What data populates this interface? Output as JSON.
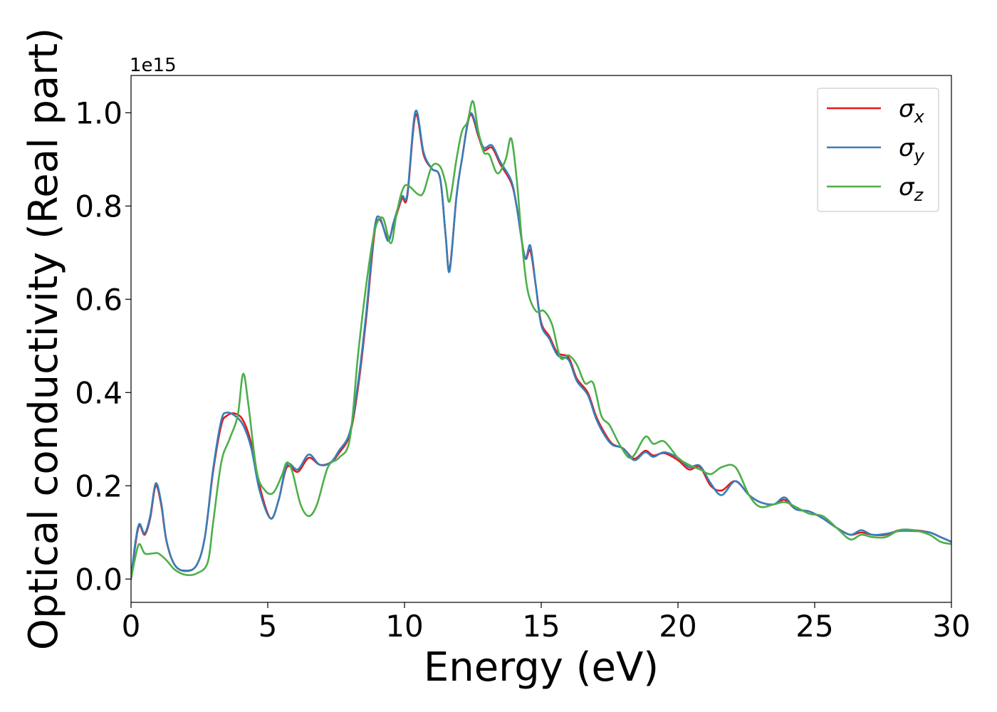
{
  "chart_data": {
    "type": "line",
    "xlabel": "Energy (eV)",
    "ylabel": "Optical conductivity (Real part)",
    "y_offset_text": "1e15",
    "xlim": [
      0,
      30
    ],
    "ylim": [
      -0.05,
      1.08
    ],
    "y_scale_factor": 1000000000000000.0,
    "x_ticks": [
      0,
      5,
      10,
      15,
      20,
      25,
      30
    ],
    "x_tick_labels": [
      "0",
      "5",
      "10",
      "15",
      "20",
      "25",
      "30"
    ],
    "y_ticks": [
      0.0,
      0.2,
      0.4,
      0.6,
      0.8,
      1.0
    ],
    "y_tick_labels": [
      "0.0",
      "0.2",
      "0.4",
      "0.6",
      "0.8",
      "1.0"
    ],
    "grid": false,
    "legend_position": "top-right",
    "series": [
      {
        "name": "σx",
        "symbol": "σ",
        "subscript": "x",
        "color": "#e41a1c",
        "points": [
          [
            0,
            0
          ],
          [
            0.15,
            0.07
          ],
          [
            0.3,
            0.115
          ],
          [
            0.5,
            0.095
          ],
          [
            0.7,
            0.13
          ],
          [
            0.9,
            0.2
          ],
          [
            1.1,
            0.16
          ],
          [
            1.3,
            0.08
          ],
          [
            1.6,
            0.03
          ],
          [
            2,
            0.017
          ],
          [
            2.4,
            0.03
          ],
          [
            2.7,
            0.09
          ],
          [
            3,
            0.23
          ],
          [
            3.3,
            0.33
          ],
          [
            3.5,
            0.35
          ],
          [
            3.8,
            0.355
          ],
          [
            4.1,
            0.34
          ],
          [
            4.4,
            0.29
          ],
          [
            4.7,
            0.2
          ],
          [
            5.1,
            0.13
          ],
          [
            5.4,
            0.17
          ],
          [
            5.7,
            0.24
          ],
          [
            6.1,
            0.23
          ],
          [
            6.5,
            0.26
          ],
          [
            6.9,
            0.245
          ],
          [
            7.3,
            0.25
          ],
          [
            7.6,
            0.27
          ],
          [
            8,
            0.31
          ],
          [
            8.3,
            0.41
          ],
          [
            8.6,
            0.56
          ],
          [
            8.9,
            0.74
          ],
          [
            9.1,
            0.77
          ],
          [
            9.4,
            0.73
          ],
          [
            9.6,
            0.76
          ],
          [
            9.9,
            0.815
          ],
          [
            10.1,
            0.82
          ],
          [
            10.4,
            0.995
          ],
          [
            10.7,
            0.91
          ],
          [
            11,
            0.88
          ],
          [
            11.3,
            0.86
          ],
          [
            11.5,
            0.74
          ],
          [
            11.65,
            0.665
          ],
          [
            11.9,
            0.82
          ],
          [
            12.1,
            0.9
          ],
          [
            12.4,
            0.995
          ],
          [
            12.7,
            0.95
          ],
          [
            12.9,
            0.92
          ],
          [
            13.2,
            0.925
          ],
          [
            13.5,
            0.89
          ],
          [
            13.9,
            0.85
          ],
          [
            14.1,
            0.8
          ],
          [
            14.4,
            0.69
          ],
          [
            14.6,
            0.705
          ],
          [
            14.8,
            0.63
          ],
          [
            15,
            0.55
          ],
          [
            15.3,
            0.52
          ],
          [
            15.6,
            0.485
          ],
          [
            16,
            0.475
          ],
          [
            16.3,
            0.43
          ],
          [
            16.7,
            0.4
          ],
          [
            17,
            0.35
          ],
          [
            17.3,
            0.315
          ],
          [
            17.6,
            0.29
          ],
          [
            18,
            0.28
          ],
          [
            18.4,
            0.258
          ],
          [
            18.8,
            0.275
          ],
          [
            19.1,
            0.265
          ],
          [
            19.5,
            0.27
          ],
          [
            20,
            0.255
          ],
          [
            20.4,
            0.235
          ],
          [
            20.8,
            0.24
          ],
          [
            21.2,
            0.2
          ],
          [
            21.6,
            0.19
          ],
          [
            22.1,
            0.21
          ],
          [
            22.6,
            0.18
          ],
          [
            23,
            0.165
          ],
          [
            23.5,
            0.16
          ],
          [
            23.9,
            0.17
          ],
          [
            24.3,
            0.15
          ],
          [
            24.8,
            0.145
          ],
          [
            25.3,
            0.13
          ],
          [
            25.8,
            0.11
          ],
          [
            26.3,
            0.095
          ],
          [
            26.7,
            0.1
          ],
          [
            27.1,
            0.095
          ],
          [
            27.6,
            0.095
          ],
          [
            28.1,
            0.105
          ],
          [
            28.6,
            0.105
          ],
          [
            29.2,
            0.1
          ],
          [
            29.6,
            0.09
          ],
          [
            30,
            0.08
          ]
        ]
      },
      {
        "name": "σy",
        "symbol": "σ",
        "subscript": "y",
        "color": "#377eb8",
        "points": [
          [
            0,
            0
          ],
          [
            0.15,
            0.075
          ],
          [
            0.3,
            0.118
          ],
          [
            0.5,
            0.098
          ],
          [
            0.7,
            0.135
          ],
          [
            0.9,
            0.205
          ],
          [
            1.1,
            0.165
          ],
          [
            1.3,
            0.082
          ],
          [
            1.6,
            0.03
          ],
          [
            2,
            0.018
          ],
          [
            2.4,
            0.03
          ],
          [
            2.7,
            0.09
          ],
          [
            3,
            0.235
          ],
          [
            3.3,
            0.34
          ],
          [
            3.5,
            0.357
          ],
          [
            3.8,
            0.35
          ],
          [
            4.1,
            0.33
          ],
          [
            4.4,
            0.28
          ],
          [
            4.7,
            0.19
          ],
          [
            5.1,
            0.13
          ],
          [
            5.4,
            0.17
          ],
          [
            5.7,
            0.245
          ],
          [
            6.1,
            0.235
          ],
          [
            6.5,
            0.267
          ],
          [
            6.9,
            0.245
          ],
          [
            7.3,
            0.25
          ],
          [
            7.6,
            0.275
          ],
          [
            8,
            0.315
          ],
          [
            8.3,
            0.42
          ],
          [
            8.6,
            0.57
          ],
          [
            8.9,
            0.75
          ],
          [
            9.1,
            0.775
          ],
          [
            9.4,
            0.725
          ],
          [
            9.6,
            0.765
          ],
          [
            9.9,
            0.82
          ],
          [
            10.1,
            0.825
          ],
          [
            10.4,
            1.003
          ],
          [
            10.7,
            0.915
          ],
          [
            11,
            0.88
          ],
          [
            11.3,
            0.86
          ],
          [
            11.5,
            0.74
          ],
          [
            11.65,
            0.66
          ],
          [
            11.9,
            0.82
          ],
          [
            12.1,
            0.9
          ],
          [
            12.4,
            0.998
          ],
          [
            12.7,
            0.955
          ],
          [
            12.9,
            0.925
          ],
          [
            13.2,
            0.93
          ],
          [
            13.5,
            0.895
          ],
          [
            13.9,
            0.855
          ],
          [
            14.1,
            0.8
          ],
          [
            14.4,
            0.69
          ],
          [
            14.6,
            0.715
          ],
          [
            14.8,
            0.63
          ],
          [
            15,
            0.545
          ],
          [
            15.3,
            0.515
          ],
          [
            15.6,
            0.48
          ],
          [
            16,
            0.47
          ],
          [
            16.3,
            0.425
          ],
          [
            16.7,
            0.395
          ],
          [
            17,
            0.345
          ],
          [
            17.3,
            0.31
          ],
          [
            17.6,
            0.288
          ],
          [
            18,
            0.28
          ],
          [
            18.4,
            0.255
          ],
          [
            18.8,
            0.272
          ],
          [
            19.1,
            0.262
          ],
          [
            19.5,
            0.272
          ],
          [
            20,
            0.26
          ],
          [
            20.4,
            0.24
          ],
          [
            20.8,
            0.243
          ],
          [
            21.2,
            0.205
          ],
          [
            21.6,
            0.18
          ],
          [
            22.1,
            0.21
          ],
          [
            22.6,
            0.18
          ],
          [
            23,
            0.165
          ],
          [
            23.5,
            0.16
          ],
          [
            23.9,
            0.175
          ],
          [
            24.3,
            0.15
          ],
          [
            24.8,
            0.145
          ],
          [
            25.3,
            0.13
          ],
          [
            25.8,
            0.11
          ],
          [
            26.3,
            0.095
          ],
          [
            26.7,
            0.105
          ],
          [
            27.1,
            0.095
          ],
          [
            27.6,
            0.097
          ],
          [
            28.1,
            0.103
          ],
          [
            28.6,
            0.103
          ],
          [
            29.2,
            0.1
          ],
          [
            29.6,
            0.09
          ],
          [
            30,
            0.08
          ]
        ]
      },
      {
        "name": "σz",
        "symbol": "σ",
        "subscript": "z",
        "color": "#4daf4a",
        "points": [
          [
            0,
            0
          ],
          [
            0.15,
            0.045
          ],
          [
            0.3,
            0.075
          ],
          [
            0.5,
            0.055
          ],
          [
            0.8,
            0.055
          ],
          [
            1,
            0.055
          ],
          [
            1.3,
            0.04
          ],
          [
            1.6,
            0.02
          ],
          [
            2,
            0.009
          ],
          [
            2.4,
            0.012
          ],
          [
            2.8,
            0.035
          ],
          [
            3,
            0.12
          ],
          [
            3.3,
            0.25
          ],
          [
            3.6,
            0.3
          ],
          [
            3.9,
            0.35
          ],
          [
            4.1,
            0.44
          ],
          [
            4.3,
            0.37
          ],
          [
            4.6,
            0.23
          ],
          [
            4.9,
            0.19
          ],
          [
            5.2,
            0.185
          ],
          [
            5.5,
            0.22
          ],
          [
            5.7,
            0.25
          ],
          [
            5.9,
            0.23
          ],
          [
            6.2,
            0.16
          ],
          [
            6.5,
            0.135
          ],
          [
            6.8,
            0.16
          ],
          [
            7.2,
            0.24
          ],
          [
            7.6,
            0.26
          ],
          [
            8,
            0.3
          ],
          [
            8.3,
            0.48
          ],
          [
            8.6,
            0.63
          ],
          [
            8.9,
            0.745
          ],
          [
            9.2,
            0.775
          ],
          [
            9.5,
            0.72
          ],
          [
            9.7,
            0.78
          ],
          [
            9.9,
            0.83
          ],
          [
            10.1,
            0.845
          ],
          [
            10.5,
            0.825
          ],
          [
            10.7,
            0.83
          ],
          [
            11,
            0.885
          ],
          [
            11.3,
            0.885
          ],
          [
            11.5,
            0.85
          ],
          [
            11.65,
            0.81
          ],
          [
            11.9,
            0.9
          ],
          [
            12.1,
            0.96
          ],
          [
            12.3,
            0.98
          ],
          [
            12.5,
            1.025
          ],
          [
            12.7,
            0.96
          ],
          [
            12.9,
            0.915
          ],
          [
            13.1,
            0.91
          ],
          [
            13.4,
            0.87
          ],
          [
            13.7,
            0.9
          ],
          [
            13.9,
            0.945
          ],
          [
            14.1,
            0.86
          ],
          [
            14.3,
            0.72
          ],
          [
            14.5,
            0.62
          ],
          [
            14.8,
            0.575
          ],
          [
            15.1,
            0.575
          ],
          [
            15.4,
            0.545
          ],
          [
            15.7,
            0.475
          ],
          [
            16,
            0.48
          ],
          [
            16.3,
            0.46
          ],
          [
            16.6,
            0.42
          ],
          [
            16.9,
            0.42
          ],
          [
            17.2,
            0.35
          ],
          [
            17.5,
            0.33
          ],
          [
            17.9,
            0.285
          ],
          [
            18.3,
            0.26
          ],
          [
            18.8,
            0.305
          ],
          [
            19.1,
            0.29
          ],
          [
            19.5,
            0.295
          ],
          [
            20,
            0.26
          ],
          [
            20.4,
            0.245
          ],
          [
            20.8,
            0.235
          ],
          [
            21.2,
            0.225
          ],
          [
            21.6,
            0.24
          ],
          [
            22.1,
            0.24
          ],
          [
            22.6,
            0.18
          ],
          [
            23,
            0.155
          ],
          [
            23.5,
            0.16
          ],
          [
            23.9,
            0.165
          ],
          [
            24.3,
            0.155
          ],
          [
            24.8,
            0.14
          ],
          [
            25.3,
            0.135
          ],
          [
            25.8,
            0.11
          ],
          [
            26.3,
            0.085
          ],
          [
            26.7,
            0.095
          ],
          [
            27.1,
            0.09
          ],
          [
            27.6,
            0.09
          ],
          [
            28.1,
            0.105
          ],
          [
            28.6,
            0.105
          ],
          [
            29.2,
            0.095
          ],
          [
            29.6,
            0.08
          ],
          [
            30,
            0.075
          ]
        ]
      }
    ]
  }
}
